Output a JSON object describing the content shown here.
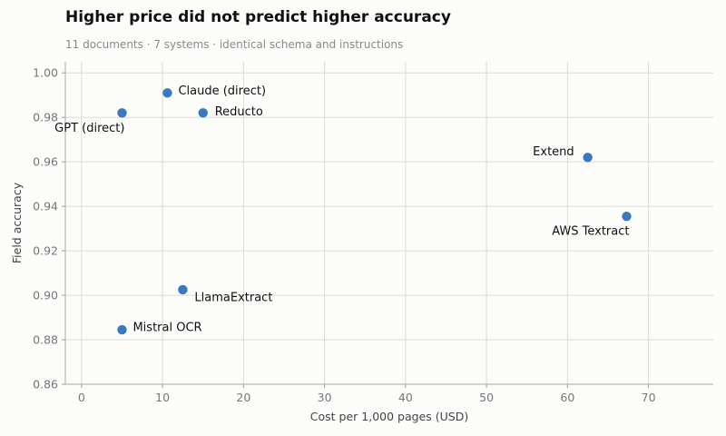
{
  "header": {
    "title": "Higher price did not predict higher accuracy",
    "subtitle": "11 documents · 7 systems · identical schema and instructions"
  },
  "chart_data": {
    "type": "scatter",
    "title": "Higher price did not predict higher accuracy",
    "subtitle": "11 documents · 7 systems · identical schema and instructions",
    "xlabel": "Cost per 1,000 pages (USD)",
    "ylabel": "Field accuracy",
    "xlim": [
      -2,
      78
    ],
    "ylim": [
      0.86,
      1.005
    ],
    "xticks": [
      0,
      10,
      20,
      30,
      40,
      50,
      60,
      70
    ],
    "yticks": [
      0.86,
      0.88,
      0.9,
      0.92,
      0.94,
      0.96,
      0.98,
      1.0
    ],
    "xtick_labels": [
      "0",
      "10",
      "20",
      "30",
      "40",
      "50",
      "60",
      "70"
    ],
    "ytick_labels": [
      "0.86",
      "0.88",
      "0.90",
      "0.92",
      "0.94",
      "0.96",
      "0.98",
      "1.00"
    ],
    "grid": true,
    "point_color": "#3a78c2",
    "points": [
      {
        "label": "Claude (direct)",
        "x": 10.6,
        "y": 0.991,
        "label_pos": "right"
      },
      {
        "label": "GPT (direct)",
        "x": 5.0,
        "y": 0.982,
        "label_pos": "below-left"
      },
      {
        "label": "Reducto",
        "x": 15.0,
        "y": 0.982,
        "label_pos": "upper-right"
      },
      {
        "label": "Extend",
        "x": 62.5,
        "y": 0.962,
        "label_pos": "upper-left"
      },
      {
        "label": "AWS Textract",
        "x": 67.3,
        "y": 0.9355,
        "label_pos": "below-left"
      },
      {
        "label": "LlamaExtract",
        "x": 12.5,
        "y": 0.9025,
        "label_pos": "lower-right"
      },
      {
        "label": "Mistral OCR",
        "x": 5.0,
        "y": 0.8845,
        "label_pos": "right"
      }
    ]
  }
}
